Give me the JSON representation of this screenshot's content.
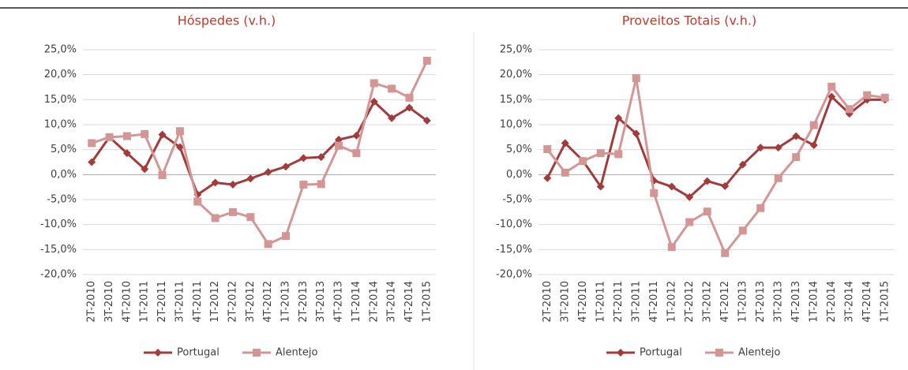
{
  "chart_data": [
    {
      "type": "line",
      "title": "Hóspedes (v.h.)",
      "categories": [
        "2T-2010",
        "3T-2010",
        "4T-2010",
        "1T-2011",
        "2T-2011",
        "3T-2011",
        "4T-2011",
        "1T-2012",
        "2T-2012",
        "3T-2012",
        "4T-2012",
        "1T-2013",
        "2T-2013",
        "3T-2013",
        "4T-2013",
        "1T-2014",
        "2T-2014",
        "3T-2014",
        "4T-2014",
        "1T-2015"
      ],
      "series": [
        {
          "name": "Portugal",
          "color": "#a33b3b",
          "marker": "diamond",
          "values": [
            2.5,
            7.5,
            4.3,
            1.1,
            8.0,
            5.5,
            -4.0,
            -1.6,
            -2.0,
            -0.8,
            0.5,
            1.6,
            3.3,
            3.5,
            7.0,
            7.8,
            14.6,
            11.3,
            13.4,
            10.8
          ]
        },
        {
          "name": "Alentejo",
          "color": "#d49595",
          "marker": "square",
          "values": [
            6.3,
            7.5,
            7.7,
            8.1,
            -0.1,
            8.7,
            -5.4,
            -8.7,
            -7.5,
            -8.5,
            -13.9,
            -12.3,
            -2.0,
            -1.9,
            5.8,
            4.3,
            18.3,
            17.2,
            15.4,
            22.8
          ]
        }
      ],
      "ylim": [
        -20,
        25
      ],
      "yticks": [
        {
          "value": -20,
          "label": "-20,0%"
        },
        {
          "value": -15,
          "label": "-15,0%"
        },
        {
          "value": -10,
          "label": "-10,0%"
        },
        {
          "value": -5,
          "label": "-5,0%"
        },
        {
          "value": 0,
          "label": "0,0%"
        },
        {
          "value": 5,
          "label": "5,0%"
        },
        {
          "value": 10,
          "label": "10,0%"
        },
        {
          "value": 15,
          "label": "15,0%"
        },
        {
          "value": 20,
          "label": "20,0%"
        },
        {
          "value": 25,
          "label": "25,0%"
        }
      ],
      "grid": true,
      "legend": "bottom"
    },
    {
      "type": "line",
      "title": "Proveitos Totais (v.h.)",
      "categories": [
        "2T-2010",
        "3T-2010",
        "4T-2010",
        "1T-2011",
        "2T-2011",
        "3T-2011",
        "4T-2011",
        "1T-2012",
        "2T-2012",
        "3T-2012",
        "4T-2012",
        "1T-2013",
        "2T-2013",
        "3T-2013",
        "4T-2013",
        "1T-2014",
        "2T-2014",
        "3T-2014",
        "4T-2014",
        "1T-2015"
      ],
      "series": [
        {
          "name": "Portugal",
          "color": "#a33b3b",
          "marker": "diamond",
          "values": [
            -0.7,
            6.3,
            2.8,
            -2.4,
            11.3,
            8.2,
            -1.2,
            -2.4,
            -4.5,
            -1.3,
            -2.3,
            2.0,
            5.4,
            5.4,
            7.7,
            5.9,
            15.6,
            12.2,
            15.0,
            15.0
          ]
        },
        {
          "name": "Alentejo",
          "color": "#d49595",
          "marker": "square",
          "values": [
            5.1,
            0.4,
            2.7,
            4.3,
            4.1,
            19.3,
            -3.7,
            -14.5,
            -9.5,
            -7.4,
            -15.7,
            -11.2,
            -6.7,
            -0.7,
            3.5,
            9.9,
            17.6,
            13.1,
            15.9,
            15.4
          ]
        }
      ],
      "ylim": [
        -20,
        25
      ],
      "yticks": [
        {
          "value": -20,
          "label": "-20,0%"
        },
        {
          "value": -15,
          "label": "-15,0%"
        },
        {
          "value": -10,
          "label": "-10,0%"
        },
        {
          "value": -5,
          "label": "-5,0%"
        },
        {
          "value": 0,
          "label": "0,0%"
        },
        {
          "value": 5,
          "label": "5,0%"
        },
        {
          "value": 10,
          "label": "10,0%"
        },
        {
          "value": 15,
          "label": "15,0%"
        },
        {
          "value": 20,
          "label": "20,0%"
        },
        {
          "value": 25,
          "label": "25,0%"
        }
      ],
      "grid": true,
      "legend": "bottom"
    }
  ]
}
